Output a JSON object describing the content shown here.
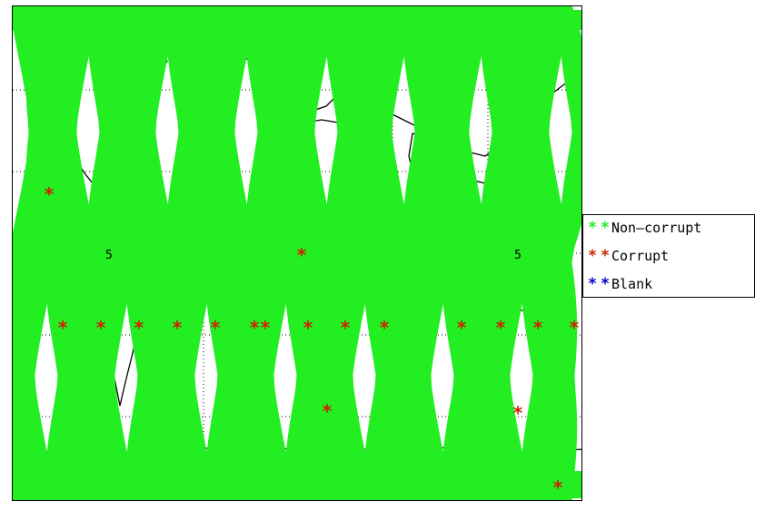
{
  "figure": {
    "type": "world-map-swath-plot",
    "background_color": "#ffffff",
    "land_outline_color": "#000000",
    "gridline_style": "dotted"
  },
  "map": {
    "projection": "equirectangular",
    "swath_color": "#22ee22",
    "corrupt_marker_color": "#cc2200",
    "axis_labels": [
      "5",
      "5"
    ]
  },
  "legend": {
    "position": "right",
    "items": [
      {
        "marker": "*",
        "label": "Non—corrupt",
        "color": "#22ee22"
      },
      {
        "marker": "*",
        "label": "Corrupt",
        "color": "#cc2200"
      },
      {
        "marker": "*",
        "label": "Blank",
        "color": "#0000cc"
      }
    ]
  },
  "corrupt_points": {
    "count": 19
  }
}
